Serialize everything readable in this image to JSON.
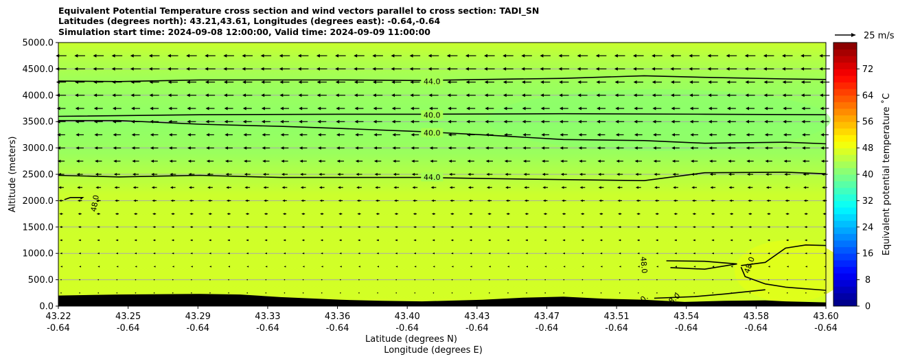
{
  "chart_data": {
    "type": "heatmap",
    "title": [
      "Equivalent Potential Temperature cross section and wind vectors parallel to cross section: TADI_SN",
      "Latitudes (degrees north): 43.21,43.61, Longitudes (degrees east): -0.64,-0.64",
      "Simulation start time: 2024-09-08 12:00:00, Valid time: 2024-09-09 11:00:00"
    ],
    "xlabel": "Latitude (degrees N)",
    "xlabel2": "Longitude (degrees E)",
    "ylabel": "Altitude (meters)",
    "x_ticks_lat": [
      "43.22",
      "43.25",
      "43.29",
      "43.33",
      "43.36",
      "43.40",
      "43.43",
      "43.47",
      "43.51",
      "43.54",
      "43.58",
      "43.60"
    ],
    "x_ticks_lon": [
      "-0.64",
      "-0.64",
      "-0.64",
      "-0.64",
      "-0.64",
      "-0.64",
      "-0.64",
      "-0.64",
      "-0.64",
      "-0.64",
      "-0.64",
      "-0.64"
    ],
    "xlim": [
      43.22,
      43.6
    ],
    "y_ticks": [
      "0.0",
      "500.0",
      "1000.0",
      "1500.0",
      "2000.0",
      "2500.0",
      "3000.0",
      "3500.0",
      "4000.0",
      "4500.0",
      "5000.0"
    ],
    "ylim": [
      0,
      5000
    ],
    "grid": "horizontal",
    "colorbar": {
      "label": "Equivalent potential temperature ˚C",
      "ticks": [
        "0",
        "8",
        "16",
        "24",
        "32",
        "40",
        "48",
        "56",
        "64",
        "72"
      ],
      "range": [
        0,
        80
      ],
      "colormap": "jet"
    },
    "contours": [
      {
        "level": 40.0,
        "label": "40.0",
        "points": [
          [
            43.22,
            3520
          ],
          [
            43.25,
            3520
          ],
          [
            43.29,
            3450
          ],
          [
            43.33,
            3410
          ],
          [
            43.36,
            3370
          ],
          [
            43.4,
            3310
          ],
          [
            43.43,
            3250
          ],
          [
            43.47,
            3160
          ],
          [
            43.51,
            3140
          ],
          [
            43.54,
            3090
          ],
          [
            43.58,
            3110
          ],
          [
            43.6,
            3080
          ]
        ]
      },
      {
        "level": 40.0,
        "label": "40.0",
        "points": [
          [
            43.22,
            3600
          ],
          [
            43.29,
            3630
          ],
          [
            43.36,
            3640
          ],
          [
            43.4,
            3640
          ],
          [
            43.47,
            3650
          ],
          [
            43.54,
            3640
          ],
          [
            43.6,
            3630
          ]
        ]
      },
      {
        "level": 44.0,
        "label": "44.0",
        "points": [
          [
            43.22,
            4270
          ],
          [
            43.25,
            4260
          ],
          [
            43.29,
            4290
          ],
          [
            43.36,
            4290
          ],
          [
            43.4,
            4280
          ],
          [
            43.43,
            4300
          ],
          [
            43.47,
            4320
          ],
          [
            43.51,
            4370
          ],
          [
            43.54,
            4340
          ],
          [
            43.58,
            4310
          ],
          [
            43.6,
            4300
          ]
        ]
      },
      {
        "level": 44.0,
        "label": "44.0",
        "points": [
          [
            43.22,
            2480
          ],
          [
            43.25,
            2450
          ],
          [
            43.29,
            2480
          ],
          [
            43.33,
            2440
          ],
          [
            43.36,
            2440
          ],
          [
            43.4,
            2440
          ],
          [
            43.43,
            2420
          ],
          [
            43.47,
            2400
          ],
          [
            43.51,
            2380
          ],
          [
            43.54,
            2530
          ],
          [
            43.58,
            2540
          ],
          [
            43.6,
            2510
          ]
        ]
      },
      {
        "level": 48.0,
        "label": "48.0",
        "points": [
          [
            43.223,
            2020
          ],
          [
            43.226,
            2060
          ],
          [
            43.232,
            2060
          ],
          [
            43.231,
            2030
          ]
        ]
      },
      {
        "level": 48.0,
        "label": "48.0",
        "points": [
          [
            43.521,
            860
          ],
          [
            43.54,
            850
          ],
          [
            43.556,
            800
          ],
          [
            43.54,
            700
          ],
          [
            43.523,
            730
          ]
        ]
      },
      {
        "level": 48.0,
        "label": "48.0",
        "points": [
          [
            43.558,
            770
          ],
          [
            43.57,
            830
          ],
          [
            43.58,
            1100
          ],
          [
            43.59,
            1160
          ],
          [
            43.6,
            1150
          ]
        ]
      },
      {
        "level": 48.0,
        "label": "48.0",
        "points": [
          [
            43.558,
            740
          ],
          [
            43.56,
            560
          ],
          [
            43.57,
            420
          ],
          [
            43.58,
            360
          ],
          [
            43.6,
            300
          ]
        ]
      },
      {
        "level": 48.0,
        "label": "48.0",
        "points": [
          [
            43.515,
            150
          ],
          [
            43.535,
            180
          ],
          [
            43.55,
            230
          ],
          [
            43.57,
            310
          ]
        ]
      }
    ],
    "contour_labels": [
      {
        "text": "44.0",
        "x": 43.405,
        "y": 4265
      },
      {
        "text": "40.0",
        "x": 43.405,
        "y": 3625
      },
      {
        "text": "40.0",
        "x": 43.405,
        "y": 3285
      },
      {
        "text": "44.0",
        "x": 43.405,
        "y": 2445
      },
      {
        "text": "48.0",
        "x": 43.238,
        "y": 1950,
        "rotate": -80
      },
      {
        "text": "48.0",
        "x": 43.51,
        "y": 780,
        "rotate": 85
      },
      {
        "text": "48.0",
        "x": 43.562,
        "y": 780,
        "rotate": -70
      },
      {
        "text": "0.",
        "x": 43.51,
        "y": 150,
        "rotate": -40
      },
      {
        "text": "48.0",
        "x": 43.524,
        "y": 120,
        "rotate": -40
      }
    ],
    "terrain_m": [
      [
        43.22,
        200
      ],
      [
        43.25,
        220
      ],
      [
        43.29,
        230
      ],
      [
        43.31,
        220
      ],
      [
        43.33,
        170
      ],
      [
        43.36,
        120
      ],
      [
        43.38,
        100
      ],
      [
        43.4,
        90
      ],
      [
        43.43,
        120
      ],
      [
        43.45,
        160
      ],
      [
        43.47,
        180
      ],
      [
        43.49,
        140
      ],
      [
        43.51,
        120
      ],
      [
        43.53,
        80
      ],
      [
        43.55,
        100
      ],
      [
        43.57,
        110
      ],
      [
        43.58,
        90
      ],
      [
        43.6,
        70
      ]
    ],
    "wind_reference": {
      "label": "25 m/s",
      "speed": 25
    },
    "wind_rows_m": [
      4750,
      4500,
      4250,
      4000,
      3750,
      3500,
      3250,
      3000,
      2750,
      2500,
      2250,
      2000,
      1750,
      1500,
      1250,
      1000,
      750,
      500,
      250
    ],
    "wind_speed_by_row": [
      12,
      12,
      11,
      11,
      10,
      10,
      9,
      9,
      8,
      7,
      6,
      5,
      4,
      3.5,
      3,
      2.5,
      1.5,
      1,
      0.5
    ],
    "wind_columns": 42,
    "wind_direction": "toward decreasing latitude"
  }
}
